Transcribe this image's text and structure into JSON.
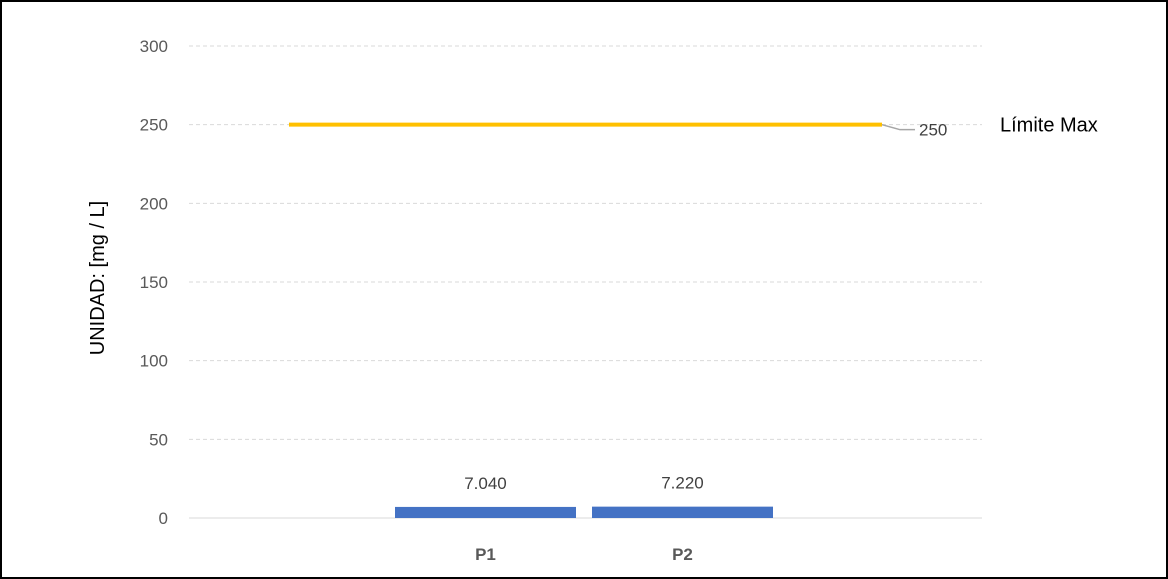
{
  "chart_data": {
    "type": "bar",
    "categories": [
      "P1",
      "P2"
    ],
    "values": [
      7.04,
      7.22
    ],
    "value_labels": [
      "7.040",
      "7.220"
    ],
    "ylabel": "UNIDAD:  [mg / L]",
    "ylim": [
      0,
      300
    ],
    "y_ticks": [
      0,
      50,
      100,
      150,
      200,
      250,
      300
    ],
    "grid": true,
    "colors": {
      "bars": "#4472C4",
      "limit": "#FFC000",
      "grid": "#D9D9D9"
    },
    "limit_line": {
      "name": "Límite Max",
      "value": 250,
      "label": "250"
    }
  }
}
